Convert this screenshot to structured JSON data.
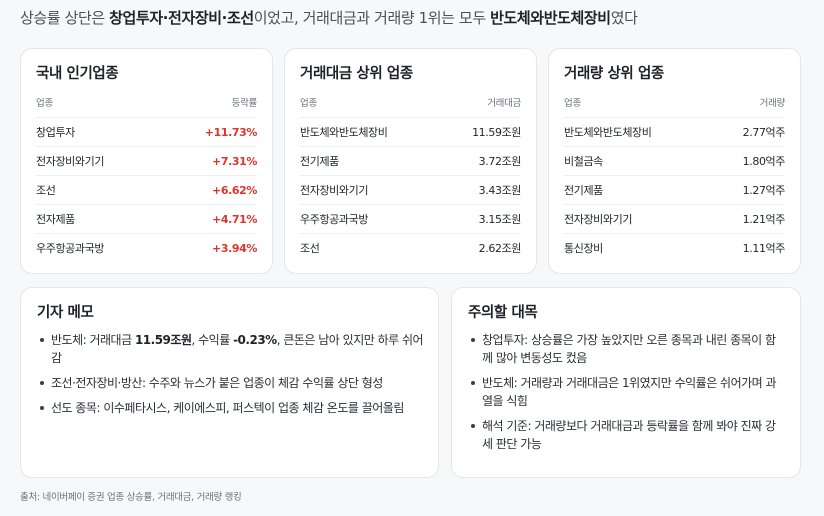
{
  "headline": {
    "prefix": "상승률 상단은 ",
    "top_sectors": "창업투자·전자장비·조선",
    "middle": "이었고, 거래대금과 거래량 1위는 모두 ",
    "leader": "반도체와반도체장비",
    "suffix": "였다"
  },
  "cards": [
    {
      "title": "국내 인기업종",
      "col_left": "업종",
      "col_right": "등락률",
      "rows": [
        {
          "name": "창업투자",
          "value": "+11.73%"
        },
        {
          "name": "전자장비와기기",
          "value": "+7.31%"
        },
        {
          "name": "조선",
          "value": "+6.62%"
        },
        {
          "name": "전자제품",
          "value": "+4.71%"
        },
        {
          "name": "우주항공과국방",
          "value": "+3.94%"
        }
      ]
    },
    {
      "title": "거래대금 상위 업종",
      "col_left": "업종",
      "col_right": "거래대금",
      "rows": [
        {
          "name": "반도체와반도체장비",
          "value": "11.59조원"
        },
        {
          "name": "전기제품",
          "value": "3.72조원"
        },
        {
          "name": "전자장비와기기",
          "value": "3.43조원"
        },
        {
          "name": "우주항공과국방",
          "value": "3.15조원"
        },
        {
          "name": "조선",
          "value": "2.62조원"
        }
      ]
    },
    {
      "title": "거래량 상위 업종",
      "col_left": "업종",
      "col_right": "거래량",
      "rows": [
        {
          "name": "반도체와반도체장비",
          "value": "2.77억주"
        },
        {
          "name": "비철금속",
          "value": "1.80억주"
        },
        {
          "name": "전기제품",
          "value": "1.27억주"
        },
        {
          "name": "전자장비와기기",
          "value": "1.21억주"
        },
        {
          "name": "통신장비",
          "value": "1.11억주"
        }
      ]
    }
  ],
  "memo": {
    "title": "기자 메모",
    "items": [
      {
        "lead": "반도체: 거래대금 ",
        "bold1": "11.59조원",
        "mid": ", 수익률 ",
        "bold2": "-0.23%",
        "tail": ", 큰돈은 남아 있지만 하루 쉬어 감"
      },
      {
        "text": "조선·전자장비·방산: 수주와 뉴스가 붙은 업종이 체감 수익률 상단 형성"
      },
      {
        "text": "선도 종목: 이수페타시스, 케이에스피, 퍼스텍이 업종 체감 온도를 끌어올림"
      }
    ]
  },
  "caution": {
    "title": "주의할 대목",
    "items": [
      "창업투자: 상승률은 가장 높았지만 오른 종목과 내린 종목이 함께 많아 변동성도 컸음",
      "반도체: 거래량과 거래대금은 1위였지만 수익률은 쉬어가며 과열을 식힘",
      "해석 기준: 거래량보다 거래대금과 등락률을 함께 봐야 진짜 강세 판단 가능"
    ]
  },
  "source": "출처: 네이버페이 증권 업종 상승률, 거래대금, 거래량 랭킹",
  "colors": {
    "positive": "#e0342b",
    "card_border": "#e3e6ea",
    "background": "#f7f8fa"
  }
}
